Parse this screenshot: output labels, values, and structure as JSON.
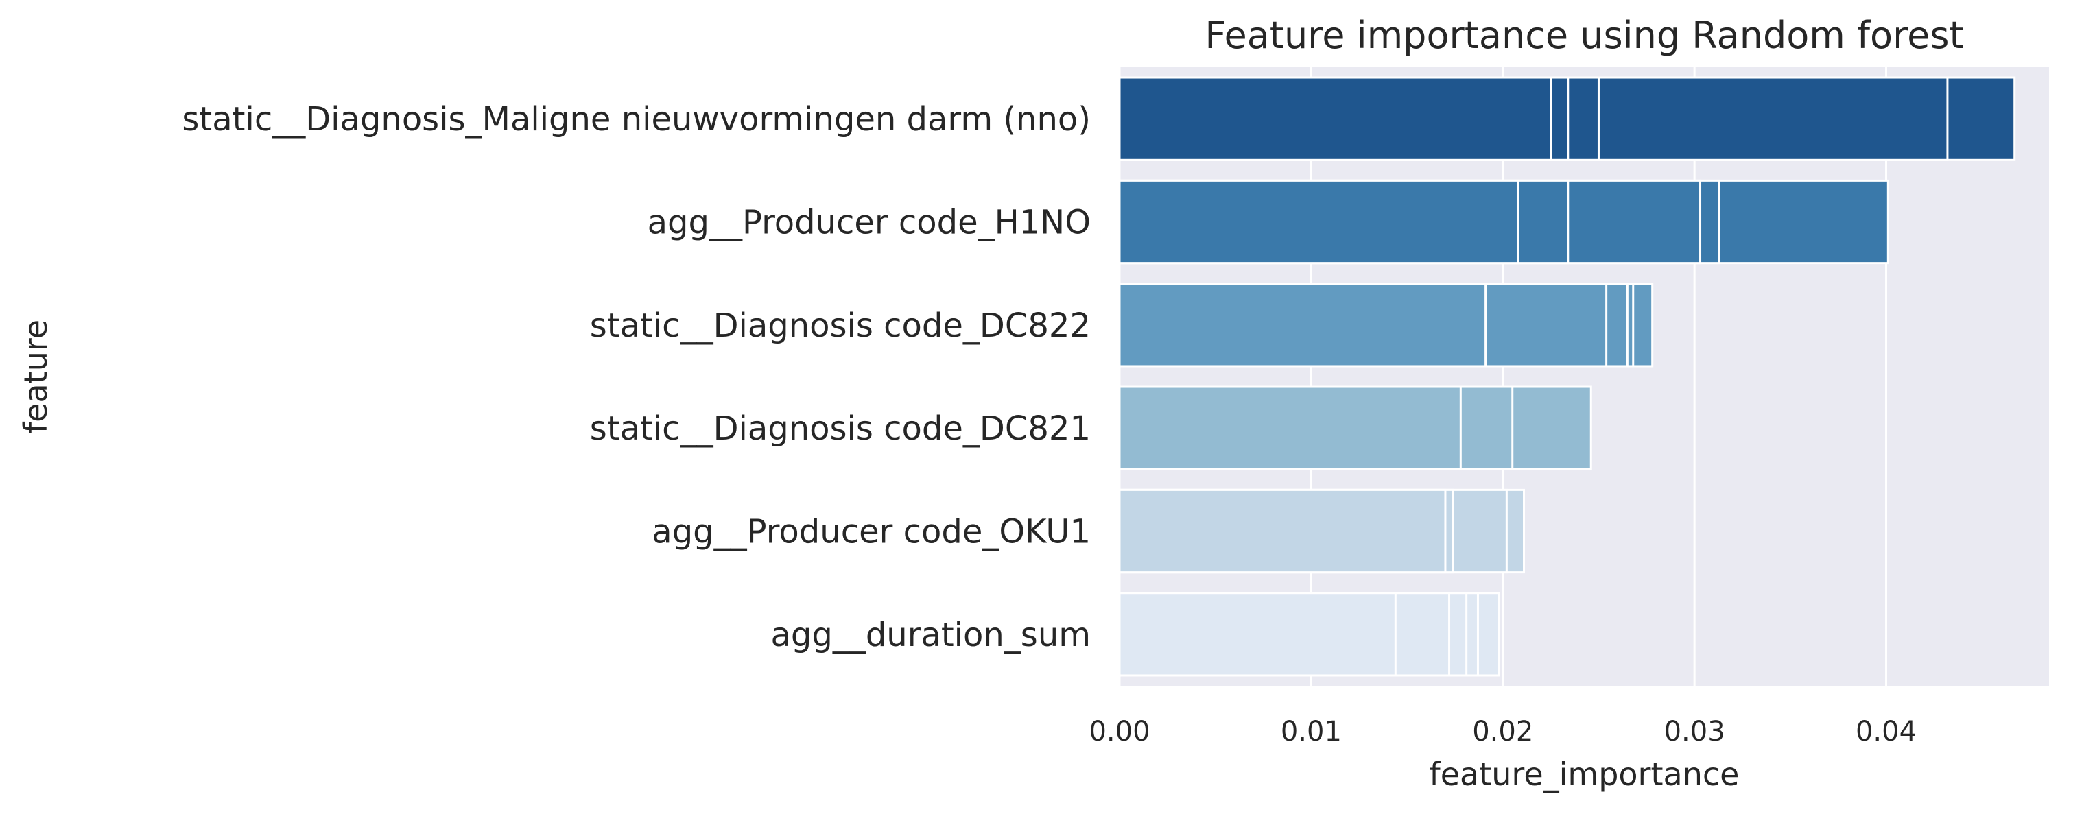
{
  "chart_data": {
    "type": "bar",
    "orientation": "horizontal",
    "title": "Feature importance using Random forest",
    "xlabel": "feature_importance",
    "ylabel": "feature",
    "xlim": [
      0,
      0.0485
    ],
    "xticks": [
      0,
      0.01,
      0.02,
      0.03,
      0.04
    ],
    "xtick_labels": [
      "0.00",
      "0.01",
      "0.02",
      "0.03",
      "0.04"
    ],
    "grid": true,
    "categories": [
      "static__Diagnosis_Maligne nieuwvormingen darm (nno)",
      "agg__Producer code_H1NO",
      "static__Diagnosis code_DC822",
      "static__Diagnosis code_DC821",
      "agg__Producer code_OKU1",
      "agg__duration_sum"
    ],
    "values": [
      [
        0.0225,
        0.0234,
        0.025,
        0.0432,
        0.0467
      ],
      [
        0.0208,
        0.0234,
        0.0303,
        0.0313,
        0.0401
      ],
      [
        0.0191,
        0.0254,
        0.0265,
        0.0268,
        0.0278
      ],
      [
        0.0178,
        0.0205,
        0.0246
      ],
      [
        0.017,
        0.0174,
        0.0202,
        0.0211
      ],
      [
        0.0144,
        0.0172,
        0.0181,
        0.0187,
        0.0198
      ]
    ],
    "colors": [
      "#1f568e",
      "#3a79aa",
      "#629bc1",
      "#93bbd2",
      "#c2d6e6",
      "#dfe8f3"
    ],
    "background": "#eaeaf2",
    "grid_color": "#ffffff"
  }
}
